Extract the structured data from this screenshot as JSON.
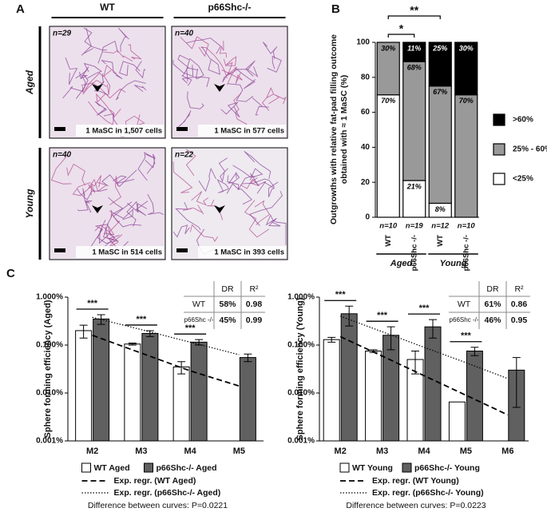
{
  "panel_labels": [
    "A",
    "B",
    "C"
  ],
  "panel_a": {
    "columns": [
      "WT",
      "p66Shc-/-"
    ],
    "rows": [
      "Aged",
      "Young"
    ],
    "images": [
      {
        "n": "n=29",
        "caption": "1 MaSC in 1,507 cells"
      },
      {
        "n": "n=40",
        "caption": "1 MaSC in 577 cells"
      },
      {
        "n": "n=40",
        "caption": "1 MaSC in 514 cells"
      },
      {
        "n": "n=22",
        "caption": "1 MaSC in 393 cells"
      }
    ]
  },
  "chart_data": [
    {
      "type": "bar",
      "stacked": true,
      "y_label": [
        "Outgrowths with relative fat-pad filling outcome",
        "obtained with ≈ 1 MaSC (%)"
      ],
      "categories": [
        "WT",
        "p66Shc -/-",
        "WT",
        "p66Shc -/-"
      ],
      "sample_sizes": [
        "n=10",
        "n=19",
        "n=12",
        "n=10"
      ],
      "groups": [
        "Aged",
        "Young"
      ],
      "significance": [
        "*",
        "**"
      ],
      "series": [
        {
          "name": "<25%",
          "color": "#ffffff",
          "values": [
            70,
            21,
            8,
            0
          ],
          "value_labels": [
            "70%",
            "21%",
            "8%",
            null
          ]
        },
        {
          "name": "25% - 60%",
          "color": "#999999",
          "values": [
            30,
            68,
            67,
            70
          ],
          "value_labels": [
            "30%",
            "68%",
            "67%",
            "70%"
          ]
        },
        {
          "name": ">60%",
          "color": "#000000",
          "values": [
            0,
            11,
            25,
            30
          ],
          "value_labels": [
            null,
            "11%",
            "25%",
            "30%"
          ]
        }
      ],
      "ylim": [
        0,
        100
      ],
      "yticks": [
        0,
        20,
        40,
        60,
        80,
        100
      ]
    },
    {
      "type": "bar",
      "log_scale": true,
      "y_label": "Sphere forming efficiency (Aged)",
      "categories": [
        "M2",
        "M3",
        "M4",
        "M5"
      ],
      "series": [
        {
          "name": "WT Aged",
          "color": "#ffffff",
          "values": [
            0.2,
            0.105,
            0.035,
            null
          ],
          "errors": [
            0.06,
            0.005,
            0.01,
            null
          ]
        },
        {
          "name": "p66Shc-/- Aged",
          "color": "#606060",
          "values": [
            0.35,
            0.175,
            0.115,
            0.055
          ],
          "errors": [
            0.08,
            0.025,
            0.015,
            0.01
          ]
        }
      ],
      "regressions": [
        {
          "name": "Exp. regr. (WT Aged)",
          "style": "dashed",
          "values": [
            0.16,
            0.068,
            0.029,
            0.014
          ]
        },
        {
          "name": "Exp. regr. (p66Shc-/- Aged)",
          "style": "dotted",
          "values": [
            0.38,
            0.21,
            0.115,
            0.063
          ]
        }
      ],
      "significance": [
        "***",
        "***",
        "***",
        null
      ],
      "note": "Difference between curves: P=0.0221",
      "table": {
        "header": [
          "DR",
          "R²"
        ],
        "rows": [
          [
            "WT",
            "58%",
            "0.98"
          ],
          [
            "p66Shc -/-",
            "45%",
            "0.99"
          ]
        ]
      },
      "ylim": [
        0.001,
        1
      ],
      "yticks": [
        {
          "value": 0.001,
          "label": "0.001%"
        },
        {
          "value": 0.01,
          "label": "0.010%"
        },
        {
          "value": 0.1,
          "label": "0.100%"
        },
        {
          "value": 1,
          "label": "1.000%"
        }
      ]
    },
    {
      "type": "bar",
      "log_scale": true,
      "y_label": "Sphere forming efficiency (Young)",
      "categories": [
        "M2",
        "M3",
        "M4",
        "M5",
        "M6"
      ],
      "series": [
        {
          "name": "WT Young",
          "color": "#ffffff",
          "values": [
            0.13,
            0.075,
            0.05,
            0.0065,
            null
          ],
          "errors": [
            0.015,
            0.005,
            0.025,
            null,
            null
          ]
        },
        {
          "name": "p66Shc-/- Young",
          "color": "#606060",
          "values": [
            0.45,
            0.16,
            0.24,
            0.075,
            0.03
          ],
          "errors": [
            0.2,
            0.08,
            0.1,
            0.015,
            0.025
          ]
        }
      ],
      "regressions": [
        {
          "name": "Exp. regr. (WT Young)",
          "style": "dashed",
          "values": [
            0.15,
            0.059,
            0.023,
            0.009,
            0.0035
          ]
        },
        {
          "name": "Exp. regr. (p66Shc-/- Young)",
          "style": "dotted",
          "values": [
            0.4,
            0.19,
            0.09,
            0.043,
            0.02
          ]
        }
      ],
      "significance": [
        "***",
        "***",
        "***",
        "***",
        null
      ],
      "note": "Difference between curves: P=0.0223",
      "table": {
        "header": [
          "DR",
          "R²"
        ],
        "rows": [
          [
            "WT",
            "61%",
            "0.86"
          ],
          [
            "p66Shc -/-",
            "46%",
            "0.95"
          ]
        ]
      },
      "ylim": [
        0.001,
        1
      ],
      "yticks": [
        {
          "value": 0.001,
          "label": "0.001%"
        },
        {
          "value": 0.01,
          "label": "0.010%"
        },
        {
          "value": 0.1,
          "label": "0.100%"
        },
        {
          "value": 1,
          "label": "1.000%"
        }
      ]
    }
  ]
}
